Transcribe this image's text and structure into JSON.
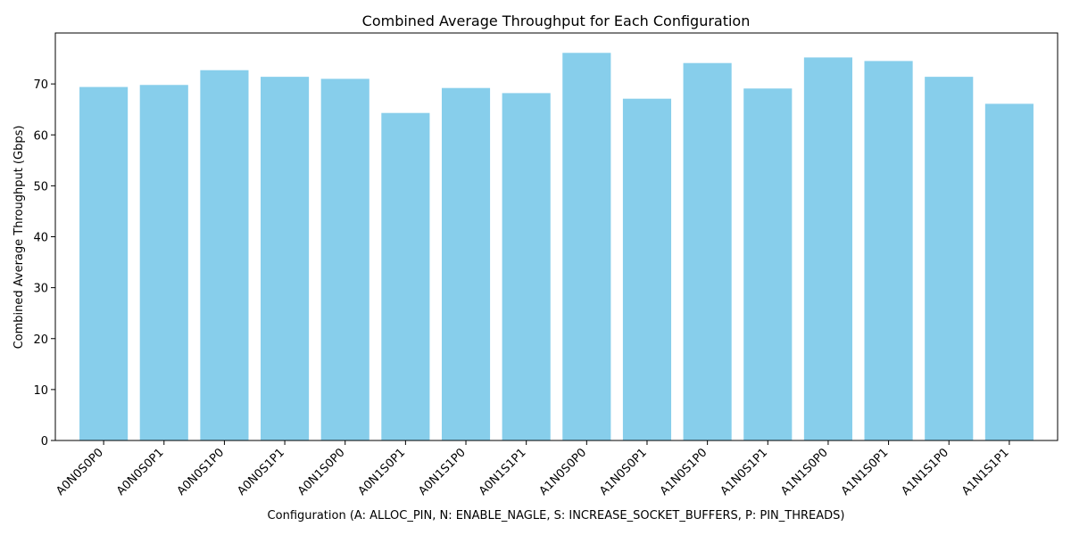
{
  "chart_data": {
    "type": "bar",
    "title": "Combined Average Throughput for Each Configuration",
    "xlabel": "Configuration (A: ALLOC_PIN, N: ENABLE_NAGLE, S: INCREASE_SOCKET_BUFFERS, P: PIN_THREADS)",
    "ylabel": "Combined Average Throughput (Gbps)",
    "categories": [
      "A0N0S0P0",
      "A0N0S0P1",
      "A0N0S1P0",
      "A0N0S1P1",
      "A0N1S0P0",
      "A0N1S0P1",
      "A0N1S1P0",
      "A0N1S1P1",
      "A1N0S0P0",
      "A1N0S0P1",
      "A1N0S1P0",
      "A1N0S1P1",
      "A1N1S0P0",
      "A1N1S0P1",
      "A1N1S1P0",
      "A1N1S1P1"
    ],
    "values": [
      69.4,
      69.8,
      72.7,
      71.4,
      71.0,
      64.3,
      69.2,
      68.2,
      76.1,
      67.1,
      74.1,
      69.1,
      75.2,
      74.5,
      71.4,
      66.1
    ],
    "ylim": [
      0,
      80
    ],
    "yticks": [
      0,
      10,
      20,
      30,
      40,
      50,
      60,
      70
    ],
    "bar_color": "#87CEEB",
    "grid": false,
    "legend": "none"
  }
}
